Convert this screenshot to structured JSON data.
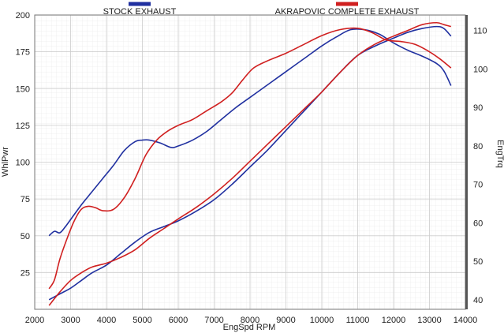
{
  "chart_data": {
    "type": "line",
    "title": "",
    "xlabel": "EngSpd  RPM",
    "ylabel_left": "WhlPwr",
    "ylabel_right": "EngTrq",
    "xlim": [
      2000,
      14000
    ],
    "ylim_left": [
      0,
      200
    ],
    "ylim_right": [
      37.5,
      114
    ],
    "x_ticks": [
      2000,
      3000,
      4000,
      5000,
      6000,
      7000,
      8000,
      9000,
      10000,
      11000,
      12000,
      13000,
      14000
    ],
    "x_tick_labels": [
      "2000",
      "3000",
      "4000",
      "5000",
      "6000",
      "7000",
      "8000",
      "9000",
      "10000",
      "11000",
      "12000",
      "13000",
      "14000"
    ],
    "y_left_ticks": [
      25,
      50,
      75,
      100,
      125,
      150,
      175,
      200
    ],
    "y_left_tick_labels": [
      "25",
      "50",
      "75",
      "100",
      "125",
      "150",
      "175",
      "200"
    ],
    "y_right_ticks": [
      40,
      50,
      60,
      70,
      80,
      90,
      100,
      110
    ],
    "y_right_tick_labels": [
      "40",
      "50",
      "60",
      "70",
      "80",
      "90",
      "100",
      "110"
    ],
    "grid": true,
    "legend": [
      {
        "name": "STOCK EXHAUST",
        "color": "#2030a0"
      },
      {
        "name": "AKRAPOVIC COMPLETE EXHAUST",
        "color": "#d02020"
      }
    ],
    "series": [
      {
        "name": "Stock Exhaust Power",
        "axis": "left",
        "color": "#2030a0",
        "x": [
          2400,
          2550,
          2700,
          2850,
          3000,
          3300,
          3600,
          3900,
          4200,
          4500,
          4800,
          5000,
          5200,
          5500,
          5800,
          6000,
          6400,
          6800,
          7200,
          7600,
          8000,
          8400,
          8800,
          9200,
          9600,
          10000,
          10400,
          10800,
          11200,
          11600,
          12000,
          12400,
          12800,
          13200,
          13400,
          13600
        ],
        "y": [
          50,
          53,
          52,
          56,
          61,
          71,
          80,
          89,
          98,
          108,
          114,
          115,
          115,
          113,
          110,
          111,
          115,
          121,
          129,
          137,
          144,
          151,
          158,
          165,
          172,
          179,
          185,
          190,
          190,
          187,
          181,
          176,
          172,
          167,
          162,
          152
        ]
      },
      {
        "name": "Stock Exhaust Torque",
        "axis": "right",
        "color": "#2030a0",
        "x": [
          2400,
          2700,
          3000,
          3300,
          3600,
          4000,
          4400,
          4800,
          5200,
          5600,
          6000,
          6500,
          7000,
          7500,
          8000,
          8500,
          9000,
          9500,
          10000,
          10500,
          11000,
          11500,
          12000,
          12400,
          12800,
          13200,
          13400,
          13600
        ],
        "y": [
          40,
          41.5,
          43,
          45,
          47,
          49,
          52,
          55,
          57.5,
          59,
          60.5,
          63,
          66,
          70,
          74.5,
          79,
          84,
          89,
          94,
          99,
          103.5,
          106,
          108,
          109.5,
          110.5,
          111,
          110.5,
          108.5
        ]
      },
      {
        "name": "Akrapovic Complete Exhaust Power",
        "axis": "left",
        "color": "#d02020",
        "x": [
          2400,
          2550,
          2700,
          2900,
          3100,
          3300,
          3500,
          3700,
          3900,
          4200,
          4500,
          4800,
          5100,
          5400,
          5700,
          6000,
          6400,
          6800,
          7200,
          7500,
          7800,
          8100,
          8500,
          9000,
          9500,
          10000,
          10500,
          11000,
          11400,
          11800,
          12200,
          12600,
          13000,
          13300,
          13600
        ],
        "y": [
          14,
          20,
          34,
          48,
          60,
          68,
          70,
          69,
          67,
          68,
          76,
          89,
          105,
          115,
          121,
          125,
          129,
          135,
          141,
          147,
          156,
          164,
          169,
          174,
          180,
          186,
          190,
          191,
          188,
          183,
          182,
          180,
          175,
          170,
          164
        ]
      },
      {
        "name": "Akrapovic Complete Exhaust Torque",
        "axis": "right",
        "color": "#d02020",
        "x": [
          2400,
          2700,
          3000,
          3300,
          3600,
          4000,
          4400,
          4800,
          5200,
          5600,
          6000,
          6500,
          7000,
          7500,
          8000,
          8500,
          9000,
          9500,
          10000,
          10500,
          11000,
          11500,
          12000,
          12400,
          12800,
          13200,
          13400,
          13600
        ],
        "y": [
          38.5,
          42,
          45,
          47,
          48.5,
          49.5,
          51,
          53,
          56,
          58.5,
          61,
          64,
          67.5,
          71.5,
          76,
          80.5,
          85,
          89.5,
          94,
          99,
          103.5,
          106.5,
          108.5,
          110,
          111.5,
          112,
          111.5,
          111
        ]
      }
    ]
  }
}
